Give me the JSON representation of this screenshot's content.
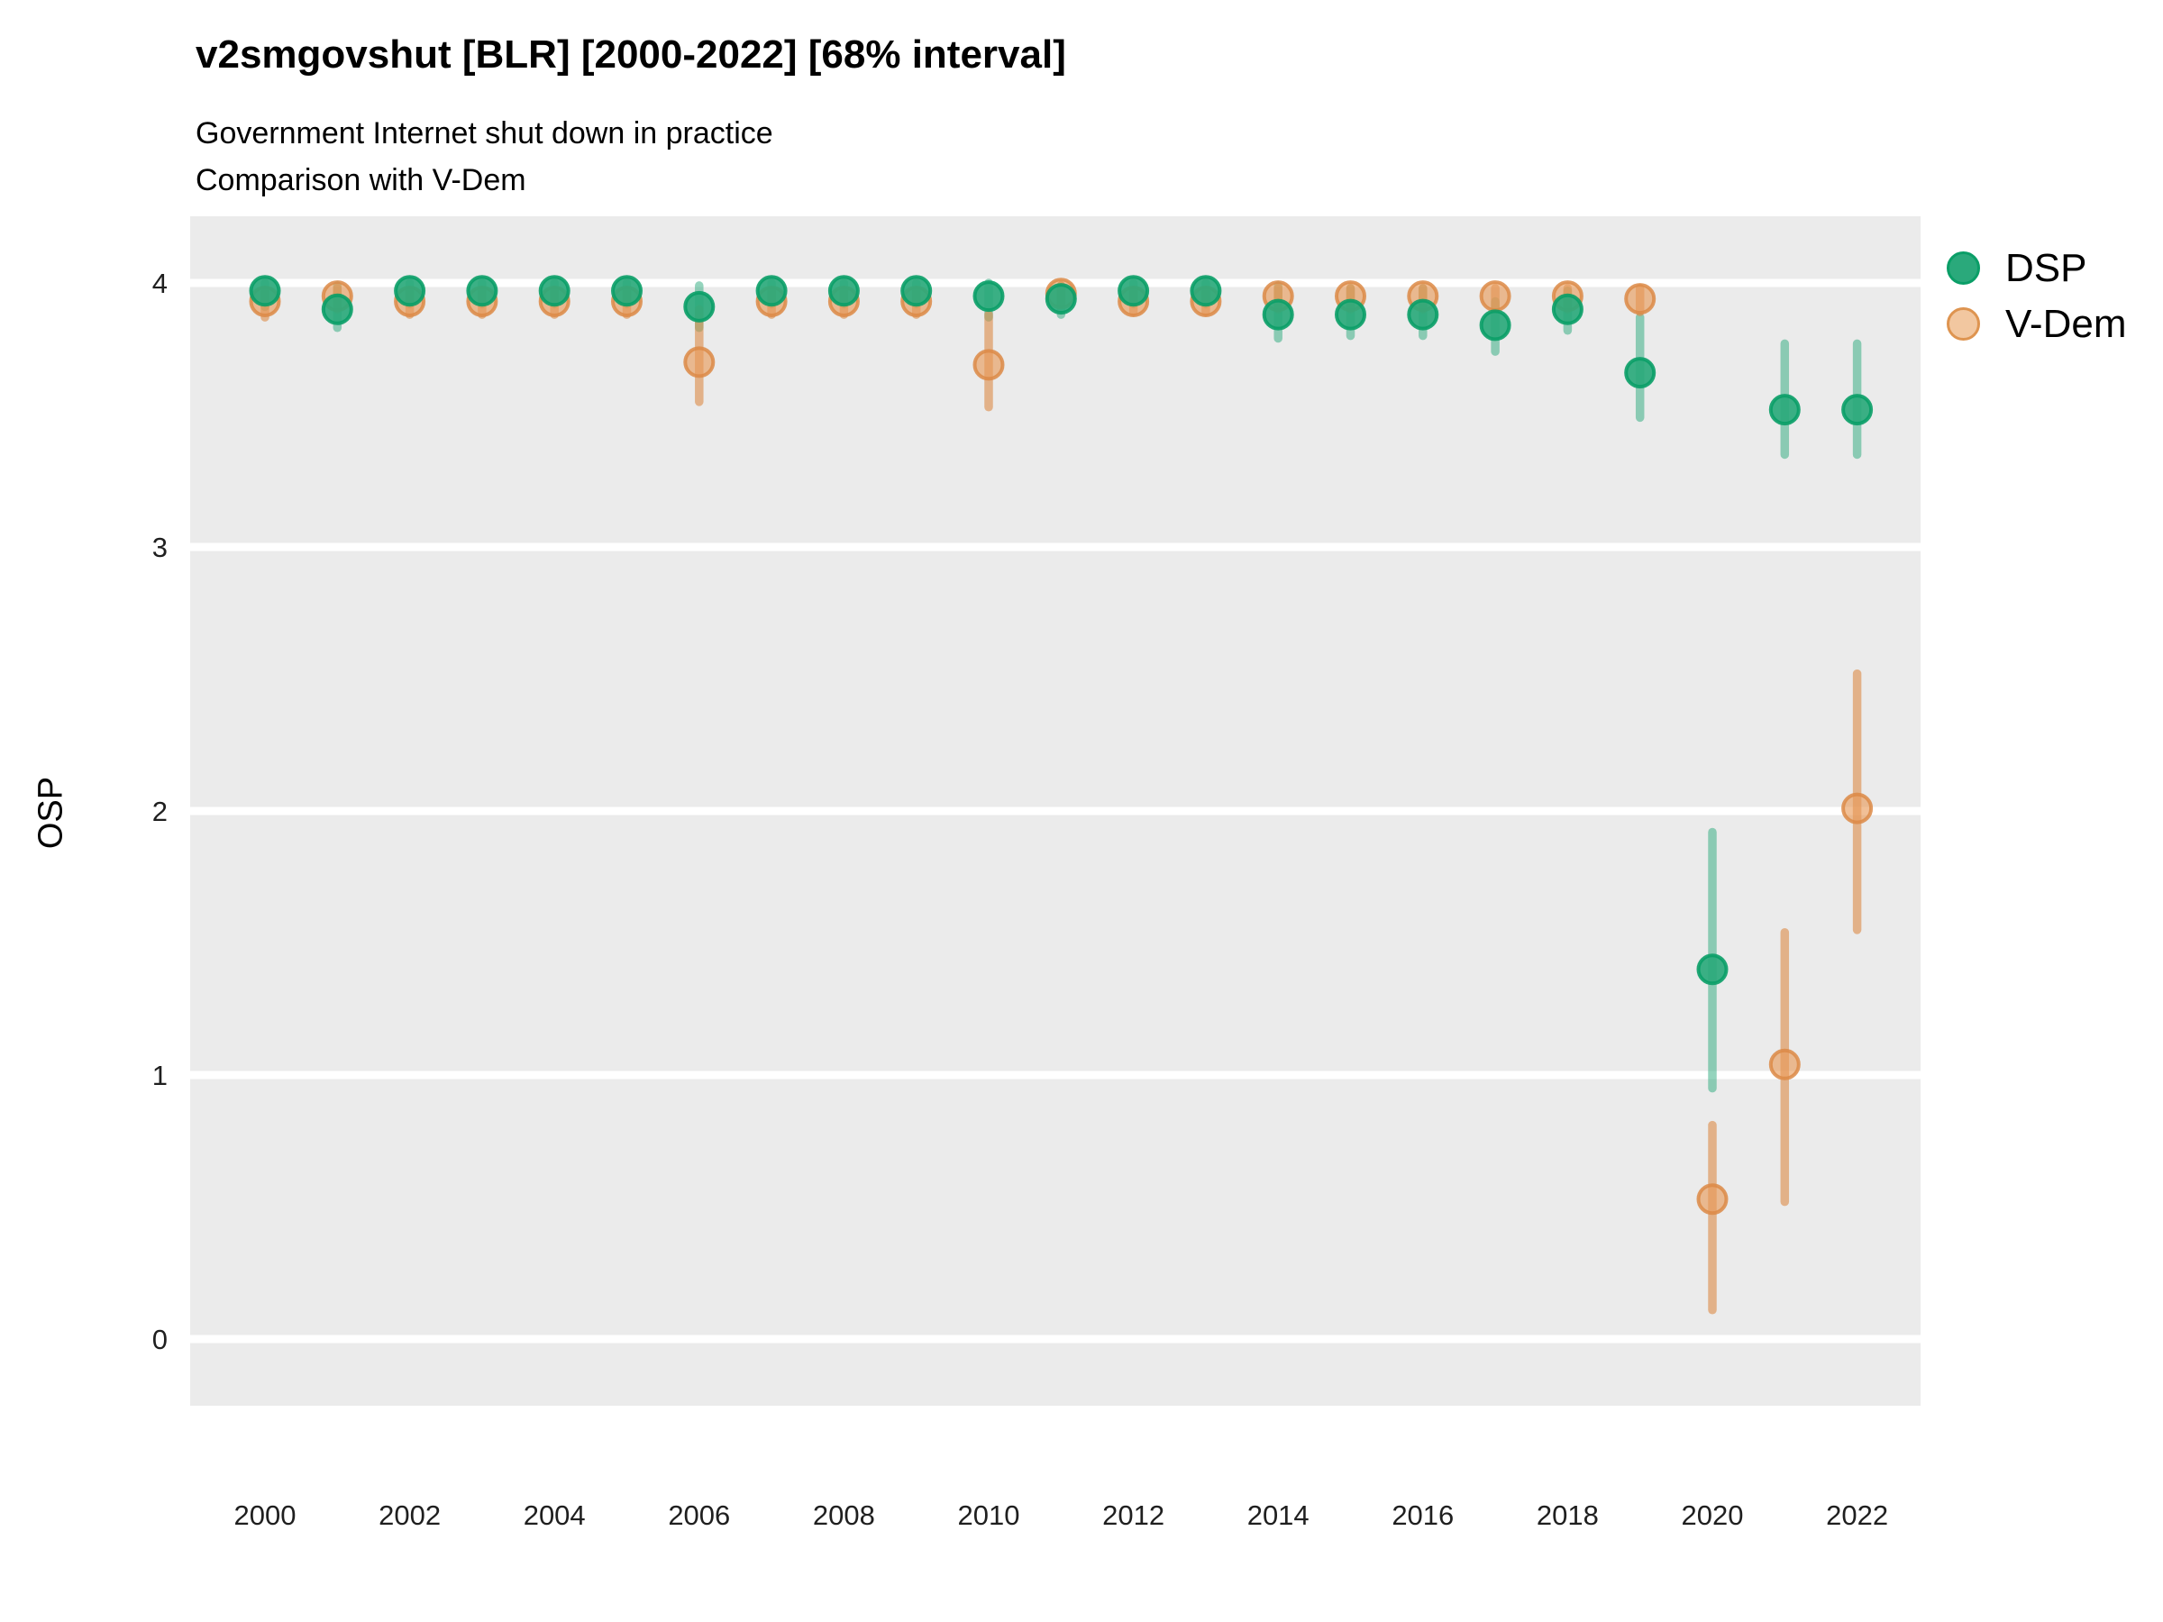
{
  "header": {
    "title": "v2smgovshut [BLR] [2000-2022] [68% interval]",
    "subtitle1": "Government Internet shut down in practice",
    "subtitle2": "Comparison with V-Dem"
  },
  "axes": {
    "y_label": "OSP",
    "y_ticks": [
      4,
      3,
      2,
      1,
      0
    ],
    "x_ticks": [
      2000,
      2002,
      2004,
      2006,
      2008,
      2010,
      2012,
      2014,
      2016,
      2018,
      2020,
      2022
    ]
  },
  "legend": {
    "items": [
      {
        "label": "DSP"
      },
      {
        "label": "V-Dem"
      }
    ]
  },
  "colors": {
    "page_bg": "#ffffff",
    "panel_bg": "#ebebeb",
    "gridline": "#ffffff",
    "dsp_fill": "#2aa97b",
    "dsp_stroke": "#0a9e67",
    "dsp_bar": "#2aa97b",
    "vdem_fill": "#e89a57",
    "vdem_stroke": "#dc8a46",
    "vdem_bar": "#dc8a46",
    "tick_text": "#1f1f1f"
  },
  "chart_data": {
    "type": "scatter",
    "title": "v2smgovshut [BLR] [2000-2022] [68% interval]",
    "subtitle": "Government Internet shut down in practice",
    "comparison_note": "Comparison with V-Dem",
    "interval": "68%",
    "xlabel": "",
    "ylabel": "OSP",
    "ylim": [
      -0.26,
      4.26
    ],
    "xlim": [
      1999,
      2022.9
    ],
    "grid": "horizontal major gridlines only, white on gray panel",
    "legend_position": "right-top",
    "x": [
      2000,
      2001,
      2002,
      2003,
      2004,
      2005,
      2006,
      2007,
      2008,
      2009,
      2010,
      2011,
      2012,
      2013,
      2014,
      2015,
      2016,
      2017,
      2018,
      2019,
      2020,
      2021,
      2022
    ],
    "series": [
      {
        "name": "DSP",
        "marker_color": "#2aa97b",
        "values": [
          3.97,
          3.9,
          3.97,
          3.97,
          3.97,
          3.97,
          3.91,
          3.97,
          3.97,
          3.97,
          3.95,
          3.94,
          3.97,
          3.97,
          3.88,
          3.88,
          3.88,
          3.84,
          3.9,
          3.66,
          1.4,
          3.52,
          3.52
        ],
        "low68": [
          3.91,
          3.83,
          3.92,
          3.92,
          3.92,
          3.92,
          3.83,
          3.92,
          3.92,
          3.92,
          3.87,
          3.88,
          3.92,
          3.92,
          3.79,
          3.8,
          3.8,
          3.74,
          3.82,
          3.49,
          0.95,
          3.35,
          3.35
        ],
        "high68": [
          4.0,
          3.99,
          4.0,
          4.0,
          4.0,
          4.0,
          3.99,
          4.0,
          4.0,
          4.0,
          4.0,
          3.99,
          4.0,
          4.0,
          3.99,
          3.98,
          3.98,
          3.93,
          3.97,
          3.87,
          1.92,
          3.77,
          3.77
        ]
      },
      {
        "name": "V-Dem",
        "marker_color": "#dc8a46",
        "values": [
          3.93,
          3.95,
          3.93,
          3.93,
          3.93,
          3.93,
          3.7,
          3.93,
          3.93,
          3.93,
          3.69,
          3.96,
          3.93,
          3.93,
          3.95,
          3.95,
          3.95,
          3.95,
          3.95,
          3.94,
          0.53,
          1.04,
          2.01
        ],
        "low68": [
          3.87,
          3.9,
          3.88,
          3.88,
          3.88,
          3.88,
          3.55,
          3.88,
          3.88,
          3.88,
          3.53,
          3.92,
          3.89,
          3.89,
          3.9,
          3.9,
          3.9,
          3.9,
          3.9,
          3.89,
          0.11,
          0.52,
          1.55
        ],
        "high68": [
          3.97,
          3.98,
          3.97,
          3.97,
          3.97,
          3.97,
          3.9,
          3.97,
          3.97,
          3.97,
          3.88,
          3.99,
          3.97,
          3.97,
          3.98,
          3.98,
          3.98,
          3.98,
          3.98,
          3.98,
          0.81,
          1.54,
          2.52
        ]
      }
    ]
  }
}
